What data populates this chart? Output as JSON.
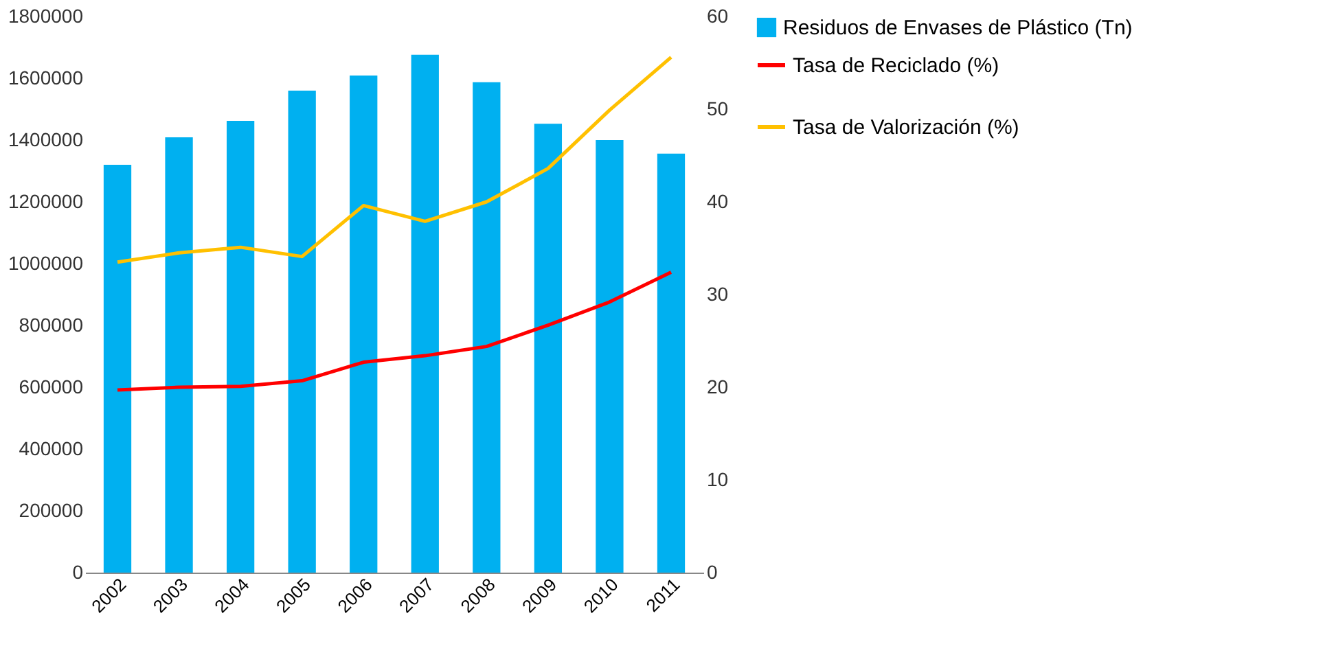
{
  "chart_data": {
    "type": "bar",
    "categories": [
      "2002",
      "2003",
      "2004",
      "2005",
      "2006",
      "2007",
      "2008",
      "2009",
      "2010",
      "2011"
    ],
    "series": [
      {
        "name": "Residuos de Envases de Plástico (Tn)",
        "color": "#00b0f0",
        "values": [
          1320000,
          1409000,
          1462000,
          1560000,
          1609000,
          1676000,
          1587000,
          1453000,
          1400000,
          1356000
        ]
      },
      {
        "name": "Tasa de Reciclado (%)",
        "type": "line",
        "axis": "y2",
        "color": "#ff0000",
        "values": [
          19.7,
          20.0,
          20.1,
          20.7,
          22.7,
          23.4,
          24.4,
          26.7,
          29.2,
          32.4
        ]
      },
      {
        "name": "Tasa de Valorización (%)",
        "type": "line",
        "axis": "y2",
        "color": "#ffc000",
        "values": [
          33.5,
          34.5,
          35.1,
          34.1,
          39.6,
          37.9,
          40.0,
          43.6,
          49.9,
          55.6
        ]
      }
    ],
    "ylim": [
      0,
      1800000
    ],
    "yticks": [
      0,
      200000,
      400000,
      600000,
      800000,
      1000000,
      1200000,
      1400000,
      1600000,
      1800000
    ],
    "y2lim": [
      0,
      60
    ],
    "y2ticks": [
      0,
      10,
      20,
      30,
      40,
      50,
      60
    ],
    "grid": false,
    "legend": "right",
    "marker": "none",
    "line_style": "solid"
  }
}
